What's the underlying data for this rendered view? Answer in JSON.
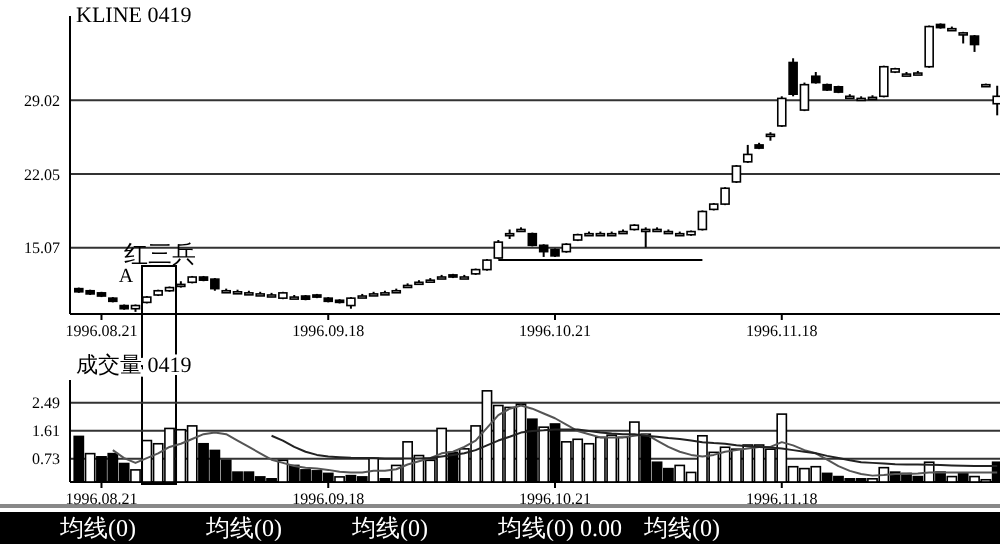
{
  "chart_data": [
    {
      "type": "candlestick",
      "title": "KLINE 0419",
      "ylim": [
        8.8,
        37
      ],
      "yticks": [
        15.07,
        22.05,
        29.02
      ],
      "grid": "y",
      "categories": [
        null,
        null,
        "1996.08.21",
        null,
        null,
        null,
        null,
        null,
        null,
        null,
        null,
        null,
        null,
        null,
        null,
        null,
        null,
        null,
        null,
        null,
        null,
        null,
        "1996.09.18",
        null,
        null,
        null,
        null,
        null,
        null,
        null,
        null,
        null,
        null,
        null,
        null,
        null,
        null,
        null,
        null,
        null,
        null,
        null,
        "1996.10.21",
        null,
        null,
        null,
        null,
        null,
        null,
        null,
        null,
        null,
        null,
        null,
        null,
        null,
        null,
        null,
        null,
        null,
        null,
        null,
        "1996.11.18",
        null,
        null,
        null,
        null,
        null,
        null,
        null,
        null,
        null,
        null,
        null,
        null,
        null,
        null,
        null,
        null,
        null,
        null,
        null
      ],
      "ohlc": [
        [
          11.2,
          11.3,
          10.8,
          10.9
        ],
        [
          11.0,
          11.1,
          10.6,
          10.7
        ],
        [
          10.8,
          10.9,
          10.4,
          10.5
        ],
        [
          10.3,
          10.4,
          9.9,
          10.0
        ],
        [
          9.6,
          9.7,
          9.2,
          9.3
        ],
        [
          9.3,
          9.7,
          9.0,
          9.6
        ],
        [
          9.9,
          10.5,
          9.8,
          10.4
        ],
        [
          10.6,
          11.1,
          10.5,
          11.0
        ],
        [
          11.0,
          11.4,
          10.9,
          11.3
        ],
        [
          11.6,
          11.9,
          11.3,
          11.6
        ],
        [
          11.8,
          12.4,
          11.7,
          12.3
        ],
        [
          12.3,
          12.4,
          11.9,
          12.0
        ],
        [
          12.1,
          12.2,
          11.0,
          11.2
        ],
        [
          11.0,
          11.2,
          10.8,
          11.0
        ],
        [
          10.9,
          11.1,
          10.7,
          10.9
        ],
        [
          10.8,
          11.0,
          10.6,
          10.8
        ],
        [
          10.7,
          10.9,
          10.5,
          10.7
        ],
        [
          10.6,
          10.8,
          10.4,
          10.6
        ],
        [
          10.3,
          10.9,
          10.2,
          10.8
        ],
        [
          10.4,
          10.6,
          10.3,
          10.4
        ],
        [
          10.5,
          10.6,
          10.1,
          10.2
        ],
        [
          10.6,
          10.7,
          10.3,
          10.4
        ],
        [
          10.3,
          10.4,
          9.9,
          10.0
        ],
        [
          10.1,
          10.2,
          9.8,
          9.9
        ],
        [
          9.6,
          10.4,
          9.3,
          10.3
        ],
        [
          10.5,
          10.7,
          10.4,
          10.5
        ],
        [
          10.7,
          10.9,
          10.6,
          10.7
        ],
        [
          10.8,
          11.0,
          10.7,
          10.8
        ],
        [
          11.0,
          11.2,
          10.9,
          11.0
        ],
        [
          11.5,
          11.7,
          11.4,
          11.5
        ],
        [
          11.8,
          12.0,
          11.7,
          11.8
        ],
        [
          12.0,
          12.2,
          11.9,
          12.0
        ],
        [
          12.3,
          12.5,
          12.2,
          12.3
        ],
        [
          12.5,
          12.6,
          12.2,
          12.3
        ],
        [
          12.3,
          12.5,
          12.2,
          12.3
        ],
        [
          12.6,
          13.1,
          12.5,
          13.0
        ],
        [
          13.0,
          14.0,
          12.9,
          13.9
        ],
        [
          14.1,
          15.8,
          14.0,
          15.6
        ],
        [
          16.4,
          16.8,
          15.9,
          16.4
        ],
        [
          16.8,
          17.0,
          16.6,
          16.8
        ],
        [
          16.4,
          16.5,
          15.2,
          15.3
        ],
        [
          15.3,
          15.4,
          14.2,
          14.7
        ],
        [
          14.9,
          15.0,
          14.2,
          14.3
        ],
        [
          14.7,
          15.5,
          14.6,
          15.4
        ],
        [
          15.8,
          16.4,
          15.7,
          16.3
        ],
        [
          16.4,
          16.6,
          16.3,
          16.4
        ],
        [
          16.4,
          16.6,
          16.3,
          16.4
        ],
        [
          16.4,
          16.6,
          16.3,
          16.4
        ],
        [
          16.6,
          16.8,
          16.5,
          16.6
        ],
        [
          16.8,
          17.3,
          16.7,
          17.2
        ],
        [
          16.8,
          17.0,
          15.1,
          16.8
        ],
        [
          16.8,
          17.0,
          16.7,
          16.8
        ],
        [
          16.6,
          16.8,
          16.5,
          16.6
        ],
        [
          16.4,
          16.6,
          16.3,
          16.4
        ],
        [
          16.3,
          16.7,
          16.2,
          16.6
        ],
        [
          16.8,
          18.6,
          16.7,
          18.5
        ],
        [
          18.7,
          19.3,
          18.6,
          19.2
        ],
        [
          19.2,
          20.8,
          19.1,
          20.7
        ],
        [
          21.3,
          22.9,
          21.2,
          22.8
        ],
        [
          23.2,
          24.8,
          23.1,
          23.9
        ],
        [
          24.8,
          25.0,
          24.4,
          24.5
        ],
        [
          25.8,
          26.0,
          25.2,
          25.8
        ],
        [
          26.6,
          29.4,
          26.5,
          29.2
        ],
        [
          32.6,
          33.0,
          29.4,
          29.6
        ],
        [
          28.1,
          30.7,
          28.0,
          30.5
        ],
        [
          31.3,
          31.7,
          30.6,
          30.7
        ],
        [
          30.5,
          30.6,
          29.9,
          30.0
        ],
        [
          30.3,
          30.4,
          29.7,
          29.8
        ],
        [
          29.4,
          29.6,
          29.3,
          29.4
        ],
        [
          29.2,
          29.4,
          29.1,
          29.2
        ],
        [
          29.3,
          29.5,
          29.2,
          29.3
        ],
        [
          29.4,
          32.3,
          29.3,
          32.2
        ],
        [
          31.7,
          32.1,
          31.6,
          32.0
        ],
        [
          31.5,
          31.7,
          31.4,
          31.5
        ],
        [
          31.6,
          31.8,
          31.5,
          31.6
        ],
        [
          32.2,
          36.1,
          32.1,
          36.0
        ],
        [
          36.2,
          36.3,
          35.8,
          35.9
        ],
        [
          35.8,
          36.0,
          35.7,
          35.8
        ],
        [
          35.4,
          35.5,
          34.4,
          35.4
        ],
        [
          35.1,
          35.2,
          33.6,
          34.3
        ],
        [
          30.5,
          30.6,
          30.4,
          30.5
        ],
        [
          28.7,
          30.4,
          27.6,
          29.4
        ]
      ],
      "series": [
        {
          "type": "line",
          "color": "#000000",
          "values": [
            null,
            null,
            null,
            null,
            null,
            null,
            null,
            null,
            null,
            null,
            null,
            null,
            null,
            null,
            null,
            null,
            null,
            null,
            null,
            null,
            null,
            null,
            null,
            null,
            null,
            null,
            null,
            null,
            null,
            null,
            null,
            null,
            null,
            null,
            null,
            null,
            null,
            13.9,
            13.9,
            13.9,
            13.9,
            13.9,
            13.9,
            13.9,
            13.9,
            13.9,
            13.9,
            13.9,
            13.9,
            13.9,
            13.9,
            13.9,
            13.9,
            13.9,
            13.9,
            13.9,
            null,
            null,
            null,
            null,
            null,
            null,
            null,
            null,
            null,
            null,
            null,
            null,
            null,
            null,
            null,
            null,
            null,
            null,
            null,
            null,
            null,
            null,
            null,
            null,
            null,
            null
          ]
        }
      ],
      "annotations": [
        "A",
        "红三兵"
      ]
    },
    {
      "type": "bar",
      "title": "成交量 0419",
      "ylim": [
        0,
        3.2
      ],
      "yticks": [
        0.73,
        1.61,
        2.49
      ],
      "grid": "y",
      "categories": [
        null,
        null,
        "1996.08.21",
        null,
        null,
        null,
        null,
        null,
        null,
        null,
        null,
        null,
        null,
        null,
        null,
        null,
        null,
        null,
        null,
        null,
        null,
        null,
        "1996.09.18",
        null,
        null,
        null,
        null,
        null,
        null,
        null,
        null,
        null,
        null,
        null,
        null,
        null,
        null,
        null,
        null,
        null,
        null,
        null,
        "1996.10.21",
        null,
        null,
        null,
        null,
        null,
        null,
        null,
        null,
        null,
        null,
        null,
        null,
        null,
        null,
        null,
        null,
        null,
        null,
        null,
        "1996.11.18",
        null,
        null,
        null,
        null,
        null,
        null,
        null,
        null,
        null,
        null,
        null,
        null,
        null,
        null,
        null,
        null,
        null,
        null,
        null
      ],
      "series": [
        {
          "type": "bar",
          "values": [
            1.43,
            0.89,
            0.79,
            0.89,
            0.58,
            0.38,
            1.3,
            1.2,
            1.68,
            1.64,
            1.76,
            1.2,
            0.99,
            0.68,
            0.31,
            0.31,
            0.16,
            0.1,
            0.68,
            0.52,
            0.38,
            0.35,
            0.27,
            0.16,
            0.2,
            0.16,
            0.74,
            0.1,
            0.52,
            1.26,
            0.83,
            0.68,
            1.68,
            0.93,
            1.04,
            1.76,
            2.86,
            2.4,
            2.34,
            2.44,
            1.97,
            1.72,
            1.82,
            1.26,
            1.34,
            1.2,
            1.4,
            1.47,
            1.4,
            1.88,
            1.5,
            0.62,
            0.42,
            0.52,
            0.3,
            1.45,
            0.93,
            1.09,
            1.03,
            1.16,
            1.16,
            1.03,
            2.13,
            0.48,
            0.42,
            0.48,
            0.27,
            0.17,
            0.1,
            0.1,
            0.1,
            0.45,
            0.31,
            0.27,
            0.17,
            0.62,
            0.31,
            0.17,
            0.27,
            0.17,
            0.07,
            0.62
          ],
          "colors": [
            "#000000",
            "#ffffff",
            "#000000",
            "#000000",
            "#000000",
            "#ffffff",
            "#ffffff",
            "#ffffff",
            "#ffffff",
            "#ffffff",
            "#ffffff",
            "#000000",
            "#000000",
            "#000000",
            "#000000",
            "#000000",
            "#000000",
            "#000000",
            "#ffffff",
            "#000000",
            "#000000",
            "#000000",
            "#000000",
            "#ffffff",
            "#000000",
            "#000000",
            "#ffffff",
            "#000000",
            "#ffffff",
            "#ffffff",
            "#ffffff",
            "#ffffff",
            "#ffffff",
            "#000000",
            "#ffffff",
            "#ffffff",
            "#ffffff",
            "#ffffff",
            "#ffffff",
            "#ffffff",
            "#000000",
            "#ffffff",
            "#000000",
            "#ffffff",
            "#ffffff",
            "#ffffff",
            "#ffffff",
            "#ffffff",
            "#ffffff",
            "#ffffff",
            "#000000",
            "#000000",
            "#000000",
            "#ffffff",
            "#ffffff",
            "#ffffff",
            "#ffffff",
            "#ffffff",
            "#ffffff",
            "#ffffff",
            "#ffffff",
            "#ffffff",
            "#ffffff",
            "#ffffff",
            "#ffffff",
            "#ffffff",
            "#000000",
            "#000000",
            "#000000",
            "#000000",
            "#ffffff",
            "#ffffff",
            "#000000",
            "#000000",
            "#000000",
            "#ffffff",
            "#000000",
            "#ffffff",
            "#000000",
            "#ffffff",
            "#ffffff",
            "#000000"
          ]
        },
        {
          "type": "line",
          "color": "#555555",
          "values": [
            null,
            null,
            null,
            1.0,
            0.75,
            0.6,
            0.75,
            0.9,
            1.1,
            1.2,
            1.35,
            1.5,
            1.55,
            1.5,
            1.3,
            1.1,
            0.9,
            0.7,
            0.6,
            0.5,
            0.45,
            0.42,
            0.38,
            0.32,
            0.3,
            0.3,
            0.35,
            0.35,
            0.4,
            0.55,
            0.65,
            0.75,
            0.9,
            0.95,
            1.1,
            1.3,
            1.7,
            2.1,
            2.3,
            2.4,
            2.3,
            2.15,
            2.0,
            1.8,
            1.6,
            1.5,
            1.4,
            1.4,
            1.4,
            1.45,
            1.5,
            1.3,
            1.1,
            0.95,
            0.85,
            0.8,
            0.85,
            0.95,
            1.0,
            1.05,
            1.1,
            1.1,
            1.25,
            1.15,
            1.0,
            0.9,
            0.7,
            0.5,
            0.35,
            0.25,
            0.2,
            0.22,
            0.25,
            0.25,
            0.27,
            0.3,
            0.3,
            0.3,
            0.3,
            0.3,
            0.3,
            0.3
          ]
        },
        {
          "type": "line",
          "color": "#222222",
          "values": [
            null,
            null,
            null,
            null,
            null,
            null,
            null,
            null,
            null,
            null,
            null,
            null,
            null,
            null,
            null,
            null,
            null,
            1.45,
            1.3,
            1.1,
            0.95,
            0.85,
            0.8,
            0.78,
            0.76,
            0.75,
            0.75,
            0.74,
            0.74,
            0.74,
            0.74,
            0.75,
            0.8,
            0.85,
            0.9,
            1.0,
            1.15,
            1.3,
            1.42,
            1.55,
            1.6,
            1.62,
            1.65,
            1.65,
            1.65,
            1.6,
            1.55,
            1.52,
            1.5,
            1.5,
            1.45,
            1.42,
            1.38,
            1.35,
            1.3,
            1.25,
            1.22,
            1.2,
            1.15,
            1.12,
            1.1,
            1.08,
            1.05,
            1.0,
            0.95,
            0.9,
            0.82,
            0.75,
            0.68,
            0.62,
            0.6,
            0.58,
            0.56,
            0.55,
            0.55,
            0.54,
            0.53,
            0.52,
            0.51,
            0.5,
            0.5,
            0.5
          ]
        }
      ],
      "annotations": [
        "均线(0)",
        "均线(0)",
        "均线(0)",
        "均线(0) 0.00",
        "均线(0)"
      ]
    }
  ]
}
